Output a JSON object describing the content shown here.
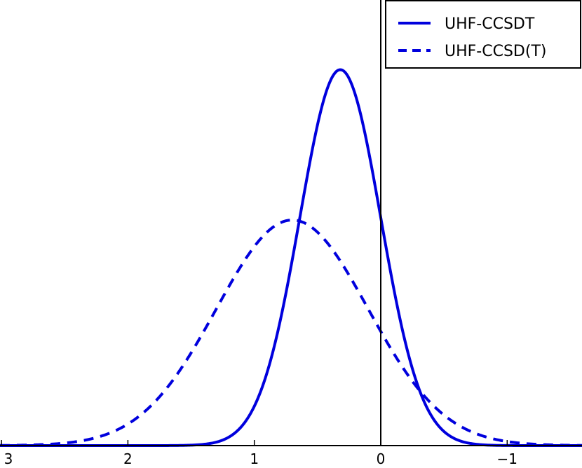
{
  "chart_data": {
    "type": "line",
    "title": "",
    "xlabel": "",
    "ylabel": "",
    "x_axis_inverted": true,
    "xlim": [
      3,
      -1.6
    ],
    "ylim": [
      0,
      1.05
    ],
    "x_ticks": [
      3,
      2,
      1,
      0,
      -1
    ],
    "x_tick_labels": [
      "3",
      "2",
      "1",
      "0",
      "−1"
    ],
    "y_ticks_visible": false,
    "grid": false,
    "reference_line_x": 0,
    "legend_placement": "top-right",
    "series": [
      {
        "name": "UHF-CCSDT",
        "style": "solid",
        "color": "#0000dd",
        "peak_x": 0.32,
        "sigma": 0.32,
        "peak_y": 1.0
      },
      {
        "name": "UHF-CCSD(T)",
        "style": "dashed",
        "color": "#0000dd",
        "peak_x": 0.7,
        "sigma": 0.6,
        "peak_y": 0.6
      }
    ]
  }
}
